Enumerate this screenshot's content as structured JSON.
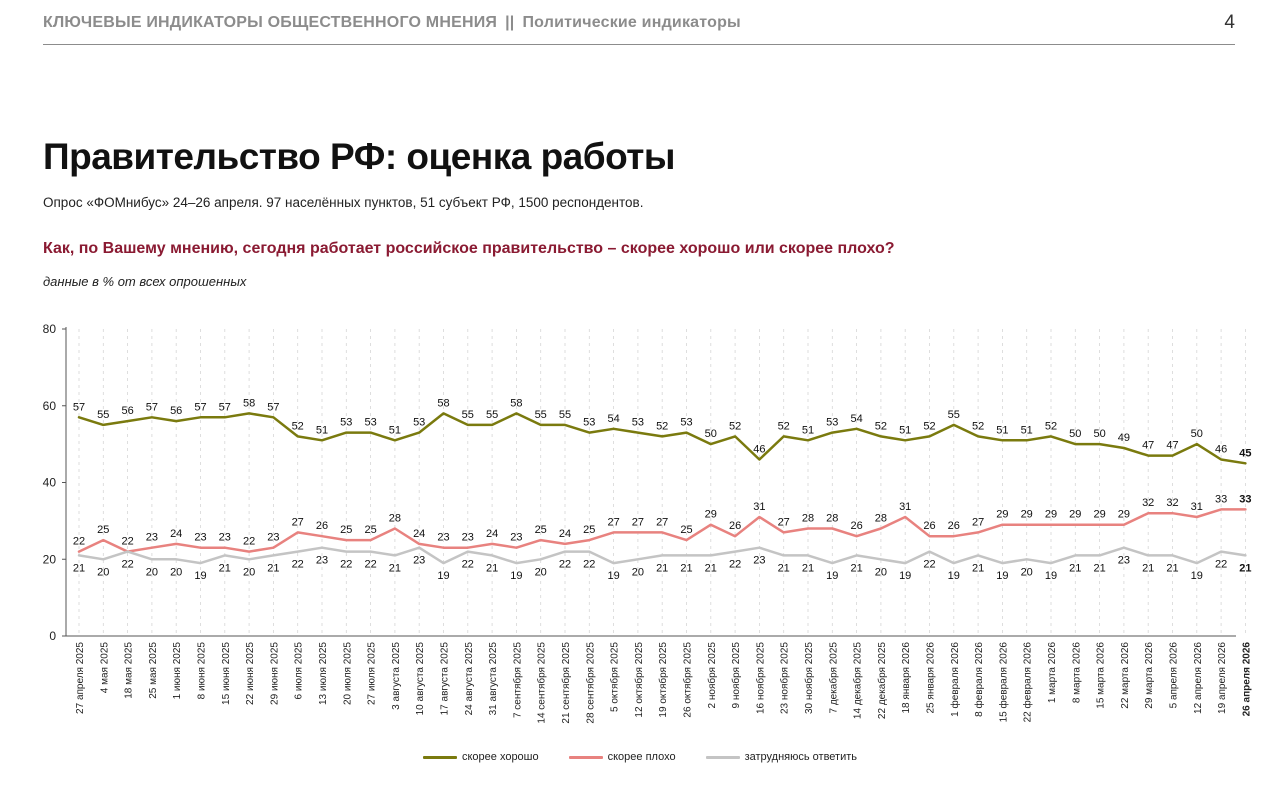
{
  "header": {
    "section": "КЛЮЧЕВЫЕ ИНДИКАТОРЫ ОБЩЕСТВЕННОГО МНЕНИЯ",
    "separator": "||",
    "subsection": "Политические индикаторы",
    "page_number": "4"
  },
  "title": "Правительство РФ: оценка работы",
  "survey_info": "Опрос «ФОМнибус» 24–26 апреля. 97 населённых пунктов, 51 субъект РФ, 1500 респондентов.",
  "question": "Как, по Вашему мнению, сегодня работает российское правительство – скорее хорошо или скорее плохо?",
  "note": "данные в % от всех опрошенных",
  "chart_data": {
    "type": "line",
    "ylim": [
      0,
      80
    ],
    "yticks": [
      0,
      20,
      40,
      60,
      80
    ],
    "grid": "vertical dashed",
    "legend_position": "bottom-center",
    "x": [
      "27 апреля 2025",
      "4 мая 2025",
      "18 мая 2025",
      "25 мая 2025",
      "1 июня 2025",
      "8 июня 2025",
      "15 июня 2025",
      "22 июня 2025",
      "29 июня 2025",
      "6 июля 2025",
      "13 июля 2025",
      "20 июля 2025",
      "27 июля 2025",
      "3 августа 2025",
      "10 августа 2025",
      "17 августа 2025",
      "24 августа 2025",
      "31 августа 2025",
      "7 сентября 2025",
      "14 сентября 2025",
      "21 сентября 2025",
      "28 сентября 2025",
      "5 октября 2025",
      "12 октября 2025",
      "19 октября 2025",
      "26 октября 2025",
      "2 ноября 2025",
      "9 ноября 2025",
      "16 ноября 2025",
      "23 ноября 2025",
      "30 ноября 2025",
      "7 декабря 2025",
      "14 декабря 2025",
      "22 декабря 2025",
      "18 января 2026",
      "25 января 2026",
      "1 февраля 2026",
      "8 февраля 2026",
      "15 февраля 2026",
      "22 февраля 2026",
      "1 марта 2026",
      "8 марта 2026",
      "15 марта 2026",
      "22 марта 2026",
      "29 марта 2026",
      "5 апреля 2026",
      "12 апреля 2026",
      "19 апреля 2026",
      "26 апреля 2026"
    ],
    "series": [
      {
        "name": "скорее хорошо",
        "color": "#7a7a0e",
        "values": [
          57,
          55,
          56,
          57,
          56,
          57,
          57,
          58,
          57,
          52,
          51,
          53,
          53,
          51,
          53,
          58,
          55,
          55,
          58,
          55,
          55,
          53,
          54,
          53,
          52,
          53,
          50,
          52,
          46,
          52,
          51,
          53,
          54,
          52,
          51,
          52,
          55,
          52,
          51,
          51,
          52,
          50,
          50,
          49,
          47,
          47,
          50,
          46,
          45
        ],
        "label_position": "above"
      },
      {
        "name": "скорее плохо",
        "color": "#e8827f",
        "values": [
          22,
          25,
          22,
          23,
          24,
          23,
          23,
          22,
          23,
          27,
          26,
          25,
          25,
          28,
          24,
          23,
          23,
          24,
          23,
          25,
          24,
          25,
          27,
          27,
          27,
          25,
          29,
          26,
          31,
          27,
          28,
          28,
          26,
          28,
          31,
          26,
          26,
          27,
          29,
          29,
          29,
          29,
          29,
          29,
          32,
          32,
          31,
          33,
          33
        ],
        "label_position": "above"
      },
      {
        "name": "затрудняюсь ответить",
        "color": "#c4c4c4",
        "values": [
          21,
          20,
          22,
          20,
          20,
          19,
          21,
          20,
          21,
          22,
          23,
          22,
          22,
          21,
          23,
          19,
          22,
          21,
          19,
          20,
          22,
          22,
          19,
          20,
          21,
          21,
          21,
          22,
          23,
          21,
          21,
          19,
          21,
          20,
          19,
          22,
          19,
          21,
          19,
          20,
          19,
          21,
          21,
          23,
          21,
          21,
          19,
          22,
          21
        ],
        "label_position": "below"
      }
    ]
  }
}
